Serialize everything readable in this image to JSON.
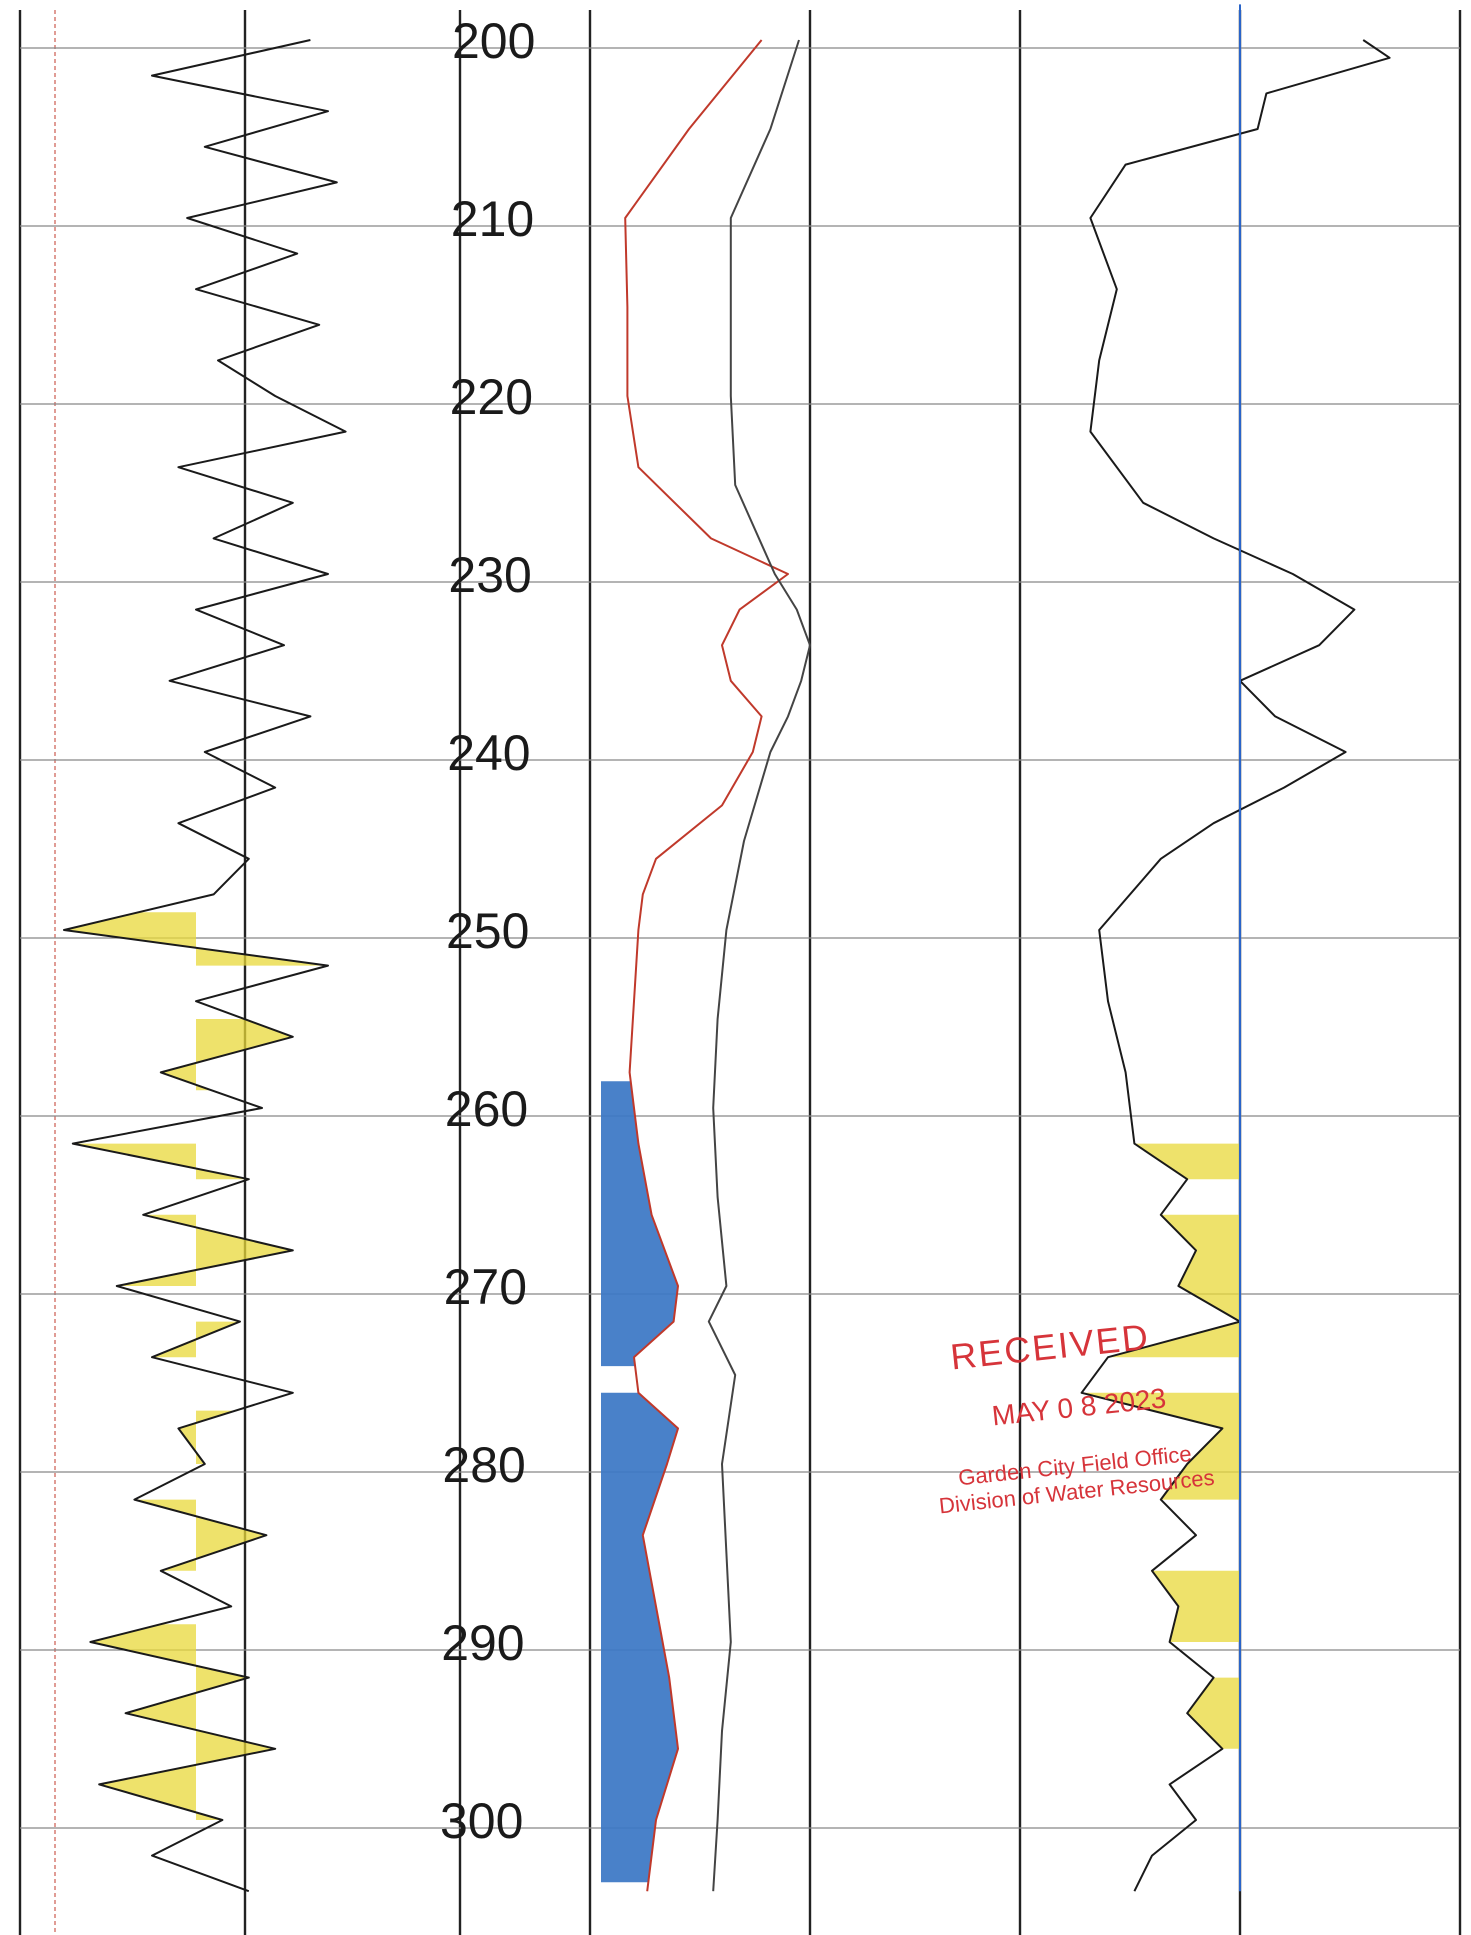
{
  "chart_data": {
    "type": "line",
    "title": "",
    "xlabel": "",
    "ylabel": "",
    "depth_axis": {
      "ticks": [
        "200",
        "210",
        "220",
        "230",
        "240",
        "250",
        "260",
        "270",
        "280",
        "290",
        "300"
      ],
      "range": [
        197,
        305
      ]
    },
    "tracks": [
      {
        "name": "",
        "shaded_intervals_color": "#e8d83a",
        "series": [
          {
            "name": "",
            "color": "#1a1a1a",
            "depth": [
              200,
              202,
              204,
              206,
              208,
              210,
              212,
              214,
              216,
              218,
              220,
              222,
              224,
              226,
              228,
              230,
              232,
              234,
              236,
              238,
              240,
              242,
              244,
              246,
              248,
              250,
              252,
              254,
              256,
              258,
              260,
              262,
              264,
              266,
              268,
              270,
              272,
              274,
              276,
              278,
              280,
              282,
              284,
              286,
              288,
              290,
              292,
              294,
              296,
              298,
              300,
              302,
              304
            ],
            "value": [
              0.66,
              0.3,
              0.7,
              0.42,
              0.72,
              0.38,
              0.63,
              0.4,
              0.68,
              0.45,
              0.58,
              0.74,
              0.36,
              0.62,
              0.44,
              0.7,
              0.4,
              0.6,
              0.34,
              0.66,
              0.42,
              0.58,
              0.36,
              0.52,
              0.44,
              0.1,
              0.7,
              0.4,
              0.62,
              0.32,
              0.55,
              0.12,
              0.52,
              0.28,
              0.62,
              0.22,
              0.5,
              0.3,
              0.62,
              0.36,
              0.42,
              0.26,
              0.56,
              0.32,
              0.48,
              0.16,
              0.52,
              0.24,
              0.58,
              0.18,
              0.46,
              0.3,
              0.52
            ]
          }
        ],
        "shaded_intervals": [
          [
            249,
            252
          ],
          [
            255,
            259
          ],
          [
            262,
            264
          ],
          [
            266,
            270
          ],
          [
            272,
            274
          ],
          [
            277,
            280
          ],
          [
            282,
            286
          ],
          [
            289,
            300
          ]
        ]
      },
      {
        "name": "",
        "shaded_intervals_color": "#3a76c4",
        "series": [
          {
            "name": "",
            "color": "#c0392b",
            "depth": [
              200,
              205,
              210,
              215,
              220,
              224,
              228,
              230,
              232,
              234,
              236,
              238,
              240,
              243,
              246,
              248,
              250,
              254,
              258,
              262,
              266,
              270,
              272,
              274,
              276,
              278,
              280,
              284,
              288,
              292,
              296,
              300,
              304
            ],
            "value": [
              0.78,
              0.45,
              0.16,
              0.17,
              0.17,
              0.22,
              0.55,
              0.9,
              0.68,
              0.6,
              0.64,
              0.78,
              0.74,
              0.6,
              0.3,
              0.24,
              0.22,
              0.2,
              0.18,
              0.22,
              0.28,
              0.4,
              0.38,
              0.2,
              0.22,
              0.4,
              0.35,
              0.24,
              0.3,
              0.36,
              0.4,
              0.3,
              0.26
            ]
          },
          {
            "name": "",
            "color": "#444444",
            "depth": [
              200,
              205,
              210,
              215,
              220,
              225,
              230,
              232,
              234,
              236,
              238,
              240,
              245,
              250,
              255,
              260,
              265,
              270,
              272,
              275,
              280,
              285,
              290,
              295,
              300,
              304
            ],
            "value": [
              0.95,
              0.82,
              0.64,
              0.64,
              0.64,
              0.66,
              0.84,
              0.94,
              1.0,
              0.96,
              0.9,
              0.82,
              0.7,
              0.62,
              0.58,
              0.56,
              0.58,
              0.62,
              0.54,
              0.66,
              0.6,
              0.62,
              0.64,
              0.6,
              0.58,
              0.56
            ]
          }
        ],
        "shaded_intervals": [
          [
            258.5,
            274.5
          ],
          [
            276,
            303.5
          ]
        ]
      },
      {
        "name": "",
        "shaded_intervals_color": "#e8d83a",
        "series": [
          {
            "name": "",
            "color": "#1a1a1a",
            "depth": [
              200,
              201,
              203,
              205,
              207,
              210,
              214,
              218,
              222,
              226,
              228,
              230,
              232,
              234,
              236,
              238,
              240,
              242,
              244,
              246,
              250,
              254,
              258,
              262,
              264,
              266,
              268,
              270,
              272,
              274,
              276,
              278,
              280,
              282,
              284,
              286,
              288,
              290,
              292,
              294,
              296,
              298,
              300,
              302,
              304
            ],
            "value": [
              0.78,
              0.84,
              0.56,
              0.54,
              0.24,
              0.16,
              0.22,
              0.18,
              0.16,
              0.28,
              0.44,
              0.62,
              0.76,
              0.68,
              0.5,
              0.58,
              0.74,
              0.6,
              0.44,
              0.32,
              0.18,
              0.2,
              0.24,
              0.26,
              0.38,
              0.32,
              0.4,
              0.36,
              0.5,
              0.2,
              0.14,
              0.46,
              0.38,
              0.32,
              0.4,
              0.3,
              0.36,
              0.34,
              0.44,
              0.38,
              0.46,
              0.34,
              0.4,
              0.3,
              0.26
            ]
          },
          {
            "name": "",
            "color": "#2a64c8",
            "depth": [
              198,
              304
            ],
            "value": [
              0.5,
              0.5
            ]
          }
        ],
        "shaded_intervals": [
          [
            262,
            264
          ],
          [
            266,
            274
          ],
          [
            276,
            282
          ],
          [
            286,
            290
          ],
          [
            292,
            296
          ]
        ]
      }
    ],
    "grid": true
  },
  "stamp": {
    "title": "RECEIVED",
    "date": "MAY 0 8 2023",
    "line1": "Garden City Field Office",
    "line2": "Division of Water Resources",
    "color": "#d6343a"
  }
}
